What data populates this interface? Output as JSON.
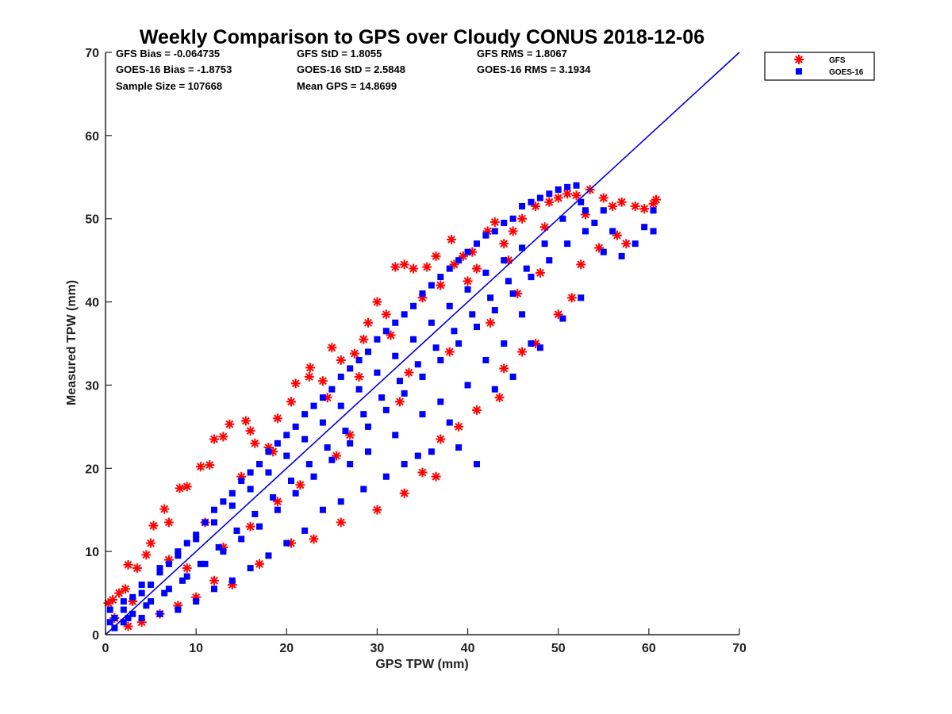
{
  "chart_data": {
    "type": "scatter",
    "title": "Weekly Comparison to GPS over Cloudy CONUS 2018-12-06",
    "xlabel": "GPS TPW (mm)",
    "ylabel": "Measured TPW (mm)",
    "xlim": [
      0,
      70
    ],
    "ylim": [
      0,
      70
    ],
    "xticks": [
      "0",
      "10",
      "20",
      "30",
      "40",
      "50",
      "60",
      "70"
    ],
    "yticks": [
      "0",
      "10",
      "20",
      "30",
      "40",
      "50",
      "60",
      "70"
    ],
    "grid": false,
    "legend_position": "top-right outside",
    "stats": [
      [
        "GFS Bias = -0.064735",
        "GFS StD = 1.8055",
        "GFS RMS = 1.8067"
      ],
      [
        "GOES-16 Bias = -1.8753",
        "GOES-16 StD = 2.5848",
        "GOES-16 RMS = 3.1934"
      ],
      [
        "Sample Size = 107668",
        "Mean GPS = 14.8699",
        ""
      ]
    ],
    "reference_line": {
      "x": [
        0,
        70
      ],
      "y": [
        0,
        70
      ],
      "color": "#0000dd"
    },
    "series": [
      {
        "name": "GFS",
        "marker": "asterisk",
        "color": "#ff0000",
        "points": [
          [
            0.3,
            3.8
          ],
          [
            0.8,
            4.2
          ],
          [
            1.5,
            5.0
          ],
          [
            2.2,
            5.5
          ],
          [
            2.5,
            8.4
          ],
          [
            3.5,
            8.0
          ],
          [
            4.5,
            9.6
          ],
          [
            5.0,
            11.0
          ],
          [
            5.3,
            13.1
          ],
          [
            6.5,
            15.1
          ],
          [
            7.0,
            13.5
          ],
          [
            8.2,
            17.6
          ],
          [
            9.0,
            17.8
          ],
          [
            10.5,
            20.2
          ],
          [
            11.5,
            20.4
          ],
          [
            12.0,
            23.5
          ],
          [
            13.0,
            23.8
          ],
          [
            13.7,
            25.3
          ],
          [
            15.5,
            25.7
          ],
          [
            16.0,
            24.5
          ],
          [
            16.5,
            23.0
          ],
          [
            18.0,
            22.5
          ],
          [
            19.0,
            26.0
          ],
          [
            20.5,
            28.0
          ],
          [
            21.0,
            30.2
          ],
          [
            22.5,
            31.0
          ],
          [
            22.6,
            32.1
          ],
          [
            24.0,
            30.5
          ],
          [
            25.0,
            34.5
          ],
          [
            26.0,
            33.0
          ],
          [
            27.5,
            33.8
          ],
          [
            28.5,
            35.5
          ],
          [
            29.0,
            37.5
          ],
          [
            30.0,
            40.0
          ],
          [
            31.0,
            38.5
          ],
          [
            32.0,
            44.2
          ],
          [
            33.0,
            44.5
          ],
          [
            34.0,
            44.0
          ],
          [
            35.5,
            44.2
          ],
          [
            36.5,
            45.5
          ],
          [
            37.0,
            42.0
          ],
          [
            38.2,
            47.5
          ],
          [
            38.5,
            44.5
          ],
          [
            39.5,
            45.5
          ],
          [
            40.5,
            46.0
          ],
          [
            41.0,
            44.0
          ],
          [
            42.2,
            48.5
          ],
          [
            43.0,
            49.6
          ],
          [
            44.0,
            47.0
          ],
          [
            45.0,
            48.5
          ],
          [
            46.0,
            50.0
          ],
          [
            47.5,
            51.5
          ],
          [
            49.0,
            52.0
          ],
          [
            50.0,
            52.5
          ],
          [
            51.0,
            53.0
          ],
          [
            52.0,
            52.8
          ],
          [
            53.5,
            53.5
          ],
          [
            55.0,
            52.5
          ],
          [
            56.0,
            51.5
          ],
          [
            57.0,
            52.0
          ],
          [
            57.5,
            47.0
          ],
          [
            58.5,
            51.5
          ],
          [
            59.5,
            51.2
          ],
          [
            60.5,
            51.8
          ],
          [
            60.8,
            52.3
          ],
          [
            56.5,
            48.0
          ],
          [
            54.5,
            46.5
          ],
          [
            52.5,
            44.5
          ],
          [
            51.5,
            40.5
          ],
          [
            50.0,
            38.5
          ],
          [
            47.5,
            35.0
          ],
          [
            46.0,
            34.0
          ],
          [
            44.0,
            32.0
          ],
          [
            43.5,
            28.5
          ],
          [
            41.0,
            27.0
          ],
          [
            39.0,
            25.0
          ],
          [
            37.0,
            23.5
          ],
          [
            36.5,
            19.0
          ],
          [
            35.0,
            19.5
          ],
          [
            33.0,
            17.0
          ],
          [
            30.0,
            15.0
          ],
          [
            26.0,
            13.5
          ],
          [
            23.0,
            11.5
          ],
          [
            20.5,
            11.0
          ],
          [
            17.0,
            8.5
          ],
          [
            14.0,
            6.0
          ],
          [
            12.0,
            6.5
          ],
          [
            10.0,
            4.5
          ],
          [
            8.0,
            3.5
          ],
          [
            6.0,
            2.5
          ],
          [
            4.0,
            1.5
          ],
          [
            2.5,
            1.0
          ],
          [
            1.0,
            2.0
          ],
          [
            3.0,
            4.0
          ],
          [
            7.0,
            9.0
          ],
          [
            11.0,
            13.5
          ],
          [
            15.0,
            19.0
          ],
          [
            18.5,
            22.0
          ],
          [
            24.5,
            28.5
          ],
          [
            28.0,
            31.0
          ],
          [
            31.5,
            36.0
          ],
          [
            35.0,
            40.5
          ],
          [
            40.0,
            42.5
          ],
          [
            44.5,
            45.0
          ],
          [
            48.5,
            49.0
          ],
          [
            53.0,
            50.5
          ],
          [
            33.5,
            31.5
          ],
          [
            27.0,
            24.0
          ],
          [
            21.5,
            18.0
          ],
          [
            16.0,
            13.0
          ],
          [
            9.0,
            8.0
          ],
          [
            45.5,
            41.0
          ],
          [
            48.0,
            43.5
          ],
          [
            42.5,
            37.5
          ],
          [
            38.0,
            34.0
          ],
          [
            32.5,
            28.0
          ],
          [
            25.5,
            21.5
          ],
          [
            19.0,
            16.0
          ],
          [
            13.0,
            10.5
          ]
        ]
      },
      {
        "name": "GOES-16",
        "marker": "square",
        "color": "#0000ff",
        "points": [
          [
            0.5,
            1.5
          ],
          [
            1.0,
            2.0
          ],
          [
            2.0,
            3.0
          ],
          [
            3.0,
            4.5
          ],
          [
            4.0,
            5.0
          ],
          [
            5.0,
            6.0
          ],
          [
            6.0,
            7.5
          ],
          [
            7.0,
            8.5
          ],
          [
            8.0,
            10.0
          ],
          [
            9.0,
            11.0
          ],
          [
            10.0,
            12.0
          ],
          [
            11.0,
            13.5
          ],
          [
            12.0,
            15.0
          ],
          [
            13.0,
            16.0
          ],
          [
            14.0,
            17.0
          ],
          [
            15.0,
            18.5
          ],
          [
            16.0,
            19.5
          ],
          [
            17.0,
            20.5
          ],
          [
            18.0,
            22.0
          ],
          [
            19.0,
            23.0
          ],
          [
            20.0,
            24.0
          ],
          [
            21.0,
            25.0
          ],
          [
            22.0,
            26.5
          ],
          [
            23.0,
            27.5
          ],
          [
            24.0,
            28.5
          ],
          [
            25.0,
            29.5
          ],
          [
            26.0,
            31.0
          ],
          [
            27.0,
            32.0
          ],
          [
            28.0,
            33.0
          ],
          [
            29.0,
            34.0
          ],
          [
            30.0,
            35.5
          ],
          [
            31.0,
            36.5
          ],
          [
            32.0,
            37.5
          ],
          [
            33.0,
            38.5
          ],
          [
            34.0,
            39.5
          ],
          [
            35.0,
            41.0
          ],
          [
            36.0,
            42.0
          ],
          [
            37.0,
            43.0
          ],
          [
            38.0,
            44.0
          ],
          [
            39.0,
            45.0
          ],
          [
            40.0,
            46.0
          ],
          [
            41.0,
            47.0
          ],
          [
            42.0,
            48.0
          ],
          [
            43.0,
            48.5
          ],
          [
            44.0,
            49.5
          ],
          [
            45.0,
            50.0
          ],
          [
            46.0,
            51.5
          ],
          [
            47.0,
            52.0
          ],
          [
            48.0,
            52.5
          ],
          [
            49.0,
            53.0
          ],
          [
            50.0,
            53.5
          ],
          [
            51.0,
            53.8
          ],
          [
            52.0,
            54.0
          ],
          [
            53.0,
            51.0
          ],
          [
            54.0,
            49.5
          ],
          [
            55.0,
            51.0
          ],
          [
            56.0,
            48.5
          ],
          [
            57.0,
            45.5
          ],
          [
            58.5,
            47.0
          ],
          [
            59.5,
            49.0
          ],
          [
            60.5,
            48.5
          ],
          [
            60.5,
            51.0
          ],
          [
            52.5,
            40.5
          ],
          [
            50.5,
            38.0
          ],
          [
            48.0,
            34.5
          ],
          [
            47.0,
            35.0
          ],
          [
            45.0,
            31.0
          ],
          [
            43.0,
            29.5
          ],
          [
            41.0,
            20.5
          ],
          [
            39.0,
            22.5
          ],
          [
            38.0,
            25.5
          ],
          [
            36.0,
            22.0
          ],
          [
            34.5,
            21.5
          ],
          [
            33.0,
            20.5
          ],
          [
            31.0,
            19.0
          ],
          [
            28.5,
            17.5
          ],
          [
            26.0,
            16.0
          ],
          [
            24.0,
            15.0
          ],
          [
            22.0,
            12.5
          ],
          [
            20.0,
            11.0
          ],
          [
            18.0,
            9.5
          ],
          [
            16.0,
            8.0
          ],
          [
            14.0,
            6.5
          ],
          [
            12.0,
            5.5
          ],
          [
            10.0,
            4.0
          ],
          [
            8.0,
            3.0
          ],
          [
            6.0,
            2.5
          ],
          [
            4.0,
            2.0
          ],
          [
            2.0,
            1.5
          ],
          [
            1.0,
            0.8
          ],
          [
            3.0,
            2.5
          ],
          [
            5.0,
            4.0
          ],
          [
            7.0,
            5.5
          ],
          [
            9.0,
            7.0
          ],
          [
            11.0,
            8.5
          ],
          [
            13.0,
            10.0
          ],
          [
            15.0,
            11.5
          ],
          [
            17.0,
            13.0
          ],
          [
            19.0,
            15.0
          ],
          [
            21.0,
            17.0
          ],
          [
            23.0,
            19.0
          ],
          [
            25.0,
            21.0
          ],
          [
            27.0,
            23.0
          ],
          [
            29.0,
            25.0
          ],
          [
            31.0,
            27.0
          ],
          [
            33.0,
            29.0
          ],
          [
            35.0,
            31.0
          ],
          [
            37.0,
            33.0
          ],
          [
            39.0,
            35.0
          ],
          [
            41.0,
            37.0
          ],
          [
            43.0,
            39.0
          ],
          [
            45.0,
            41.0
          ],
          [
            47.0,
            43.0
          ],
          [
            49.0,
            45.0
          ],
          [
            51.0,
            47.0
          ],
          [
            53.0,
            48.5
          ],
          [
            55.0,
            46.0
          ],
          [
            46.5,
            44.0
          ],
          [
            44.5,
            42.5
          ],
          [
            42.5,
            40.5
          ],
          [
            40.5,
            38.5
          ],
          [
            38.5,
            36.5
          ],
          [
            36.5,
            34.5
          ],
          [
            34.5,
            32.5
          ],
          [
            32.5,
            30.5
          ],
          [
            30.5,
            28.5
          ],
          [
            28.5,
            26.5
          ],
          [
            26.5,
            24.5
          ],
          [
            24.5,
            22.5
          ],
          [
            22.5,
            20.5
          ],
          [
            20.5,
            18.5
          ],
          [
            18.5,
            16.5
          ],
          [
            16.5,
            14.5
          ],
          [
            14.5,
            12.5
          ],
          [
            12.5,
            10.5
          ],
          [
            10.5,
            8.5
          ],
          [
            8.5,
            6.5
          ],
          [
            6.5,
            5.0
          ],
          [
            4.5,
            3.5
          ],
          [
            2.5,
            2.0
          ],
          [
            48.5,
            47.0
          ],
          [
            50.5,
            50.0
          ],
          [
            52.5,
            52.0
          ],
          [
            46.0,
            46.5
          ],
          [
            44.0,
            45.0
          ],
          [
            42.0,
            43.5
          ],
          [
            40.0,
            41.5
          ],
          [
            38.0,
            39.5
          ],
          [
            36.0,
            37.5
          ],
          [
            34.0,
            35.5
          ],
          [
            32.0,
            33.5
          ],
          [
            30.0,
            31.5
          ],
          [
            28.0,
            29.5
          ],
          [
            26.0,
            27.5
          ],
          [
            24.0,
            25.5
          ],
          [
            22.0,
            23.5
          ],
          [
            20.0,
            21.5
          ],
          [
            18.0,
            19.5
          ],
          [
            16.0,
            17.5
          ],
          [
            14.0,
            15.5
          ],
          [
            12.0,
            13.5
          ],
          [
            10.0,
            11.5
          ],
          [
            8.0,
            9.5
          ],
          [
            6.0,
            8.0
          ],
          [
            4.0,
            6.0
          ],
          [
            2.0,
            4.0
          ],
          [
            0.5,
            3.0
          ],
          [
            46.0,
            38.5
          ],
          [
            44.0,
            35.0
          ],
          [
            42.0,
            33.0
          ],
          [
            40.0,
            30.0
          ],
          [
            37.0,
            28.0
          ],
          [
            35.0,
            26.5
          ],
          [
            32.0,
            24.0
          ],
          [
            29.0,
            22.0
          ],
          [
            27.0,
            20.5
          ]
        ]
      }
    ]
  }
}
